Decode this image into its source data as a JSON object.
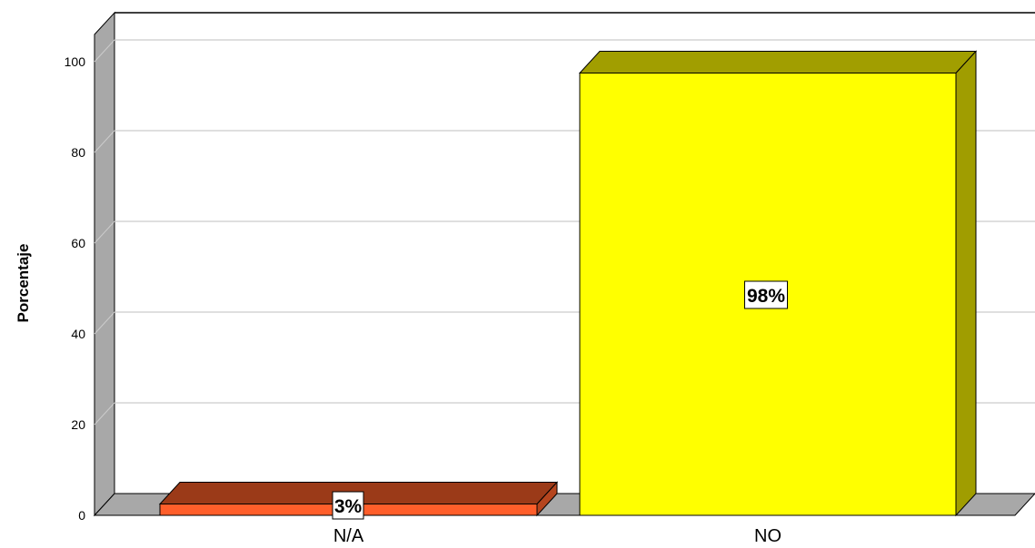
{
  "chart_data": {
    "type": "bar",
    "categories": [
      "N/A",
      "NO"
    ],
    "values": [
      2.5,
      97.5
    ],
    "data_labels": [
      "3%",
      "98%"
    ],
    "title": "",
    "xlabel": "",
    "ylabel": "Porcentaje",
    "ylim": [
      0,
      100
    ],
    "yticks": [
      "0",
      "20",
      "40",
      "60",
      "80",
      "100"
    ],
    "grid": true,
    "three_d": true,
    "colors": {
      "bars": [
        {
          "front": "#FF5E2A",
          "top": "#9B3A18",
          "side": "#B5451E"
        },
        {
          "front": "#FFFF00",
          "top": "#A19E00",
          "side": "#A09D00"
        }
      ],
      "floor": "#A8A8A8",
      "left_wall": "#A8A8A8",
      "gridline": "#CCCCCC",
      "outline": "#000000"
    }
  }
}
